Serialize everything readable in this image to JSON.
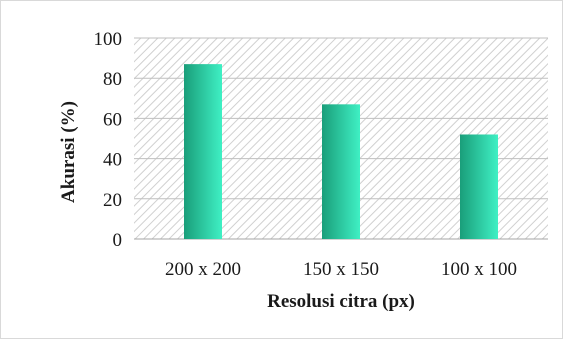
{
  "chart_data": {
    "type": "bar",
    "title": "",
    "xlabel": "Resolusi citra (px)",
    "ylabel": "Akurasi (%)",
    "categories": [
      "200 x 200",
      "150 x 150",
      "100 x 100"
    ],
    "values": [
      87,
      67,
      52
    ],
    "ylim": [
      0,
      100
    ],
    "yticks": [
      "0",
      "20",
      "40",
      "60",
      "80",
      "100"
    ],
    "grid": true,
    "legend": "none",
    "plot_background": "diagonal hatch",
    "colors": {
      "bar_dark": "#1a9e7a",
      "bar_light": "#3ff0c4",
      "hatch": "#d0d0d0"
    }
  }
}
